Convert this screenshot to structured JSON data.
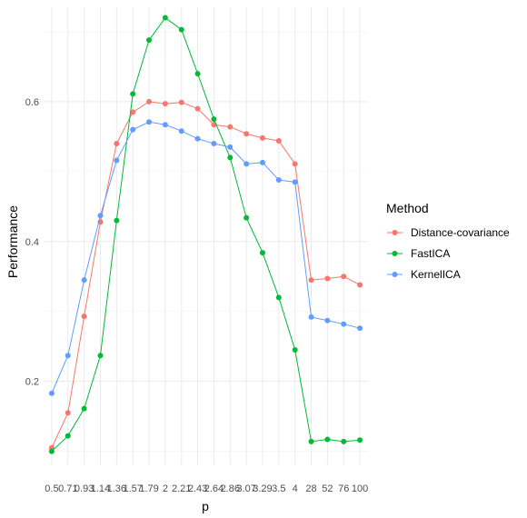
{
  "chart_data": {
    "type": "line",
    "xlabel": "p",
    "ylabel": "Performance",
    "categories": [
      "0.5",
      "0.71",
      "0.93",
      "1.14",
      "1.36",
      "1.57",
      "1.79",
      "2",
      "2.21",
      "2.43",
      "2.64",
      "2.86",
      "3.07",
      "3.29",
      "3.5",
      "4",
      "28",
      "52",
      "76",
      "100"
    ],
    "x_tick_labels": [
      "0.5",
      "0.71",
      "0.93",
      "1.14",
      "1.36",
      "1.57",
      "1.79",
      "2",
      "2.21",
      "2.43",
      "2.64",
      "2.86",
      "3.07",
      "3.29",
      "3.5",
      "4",
      "28",
      "52",
      "76",
      "100"
    ],
    "ylim": [
      0.08,
      0.735
    ],
    "y_ticks": [
      0.2,
      0.4,
      0.6
    ],
    "y_tick_labels": [
      "0.2",
      "0.4",
      "0.6"
    ],
    "grid": true,
    "legend": {
      "title": "Method",
      "position": "right"
    },
    "series": [
      {
        "name": "Distance-covariance",
        "color": "#F8766D",
        "values": [
          0.105,
          0.155,
          0.293,
          0.428,
          0.54,
          0.585,
          0.6,
          0.597,
          0.599,
          0.59,
          0.567,
          0.564,
          0.554,
          0.548,
          0.544,
          0.511,
          0.345,
          0.347,
          0.35,
          0.338
        ]
      },
      {
        "name": "FastICA",
        "color": "#00BA38",
        "values": [
          0.1,
          0.122,
          0.161,
          0.237,
          0.43,
          0.611,
          0.688,
          0.72,
          0.703,
          0.64,
          0.575,
          0.52,
          0.434,
          0.384,
          0.32,
          0.245,
          0.114,
          0.117,
          0.114,
          0.116
        ]
      },
      {
        "name": "KernelICA",
        "color": "#619CFF",
        "values": [
          0.183,
          0.237,
          0.345,
          0.437,
          0.516,
          0.56,
          0.571,
          0.567,
          0.558,
          0.547,
          0.54,
          0.535,
          0.511,
          0.513,
          0.488,
          0.485,
          0.292,
          0.287,
          0.282,
          0.276
        ]
      }
    ]
  }
}
